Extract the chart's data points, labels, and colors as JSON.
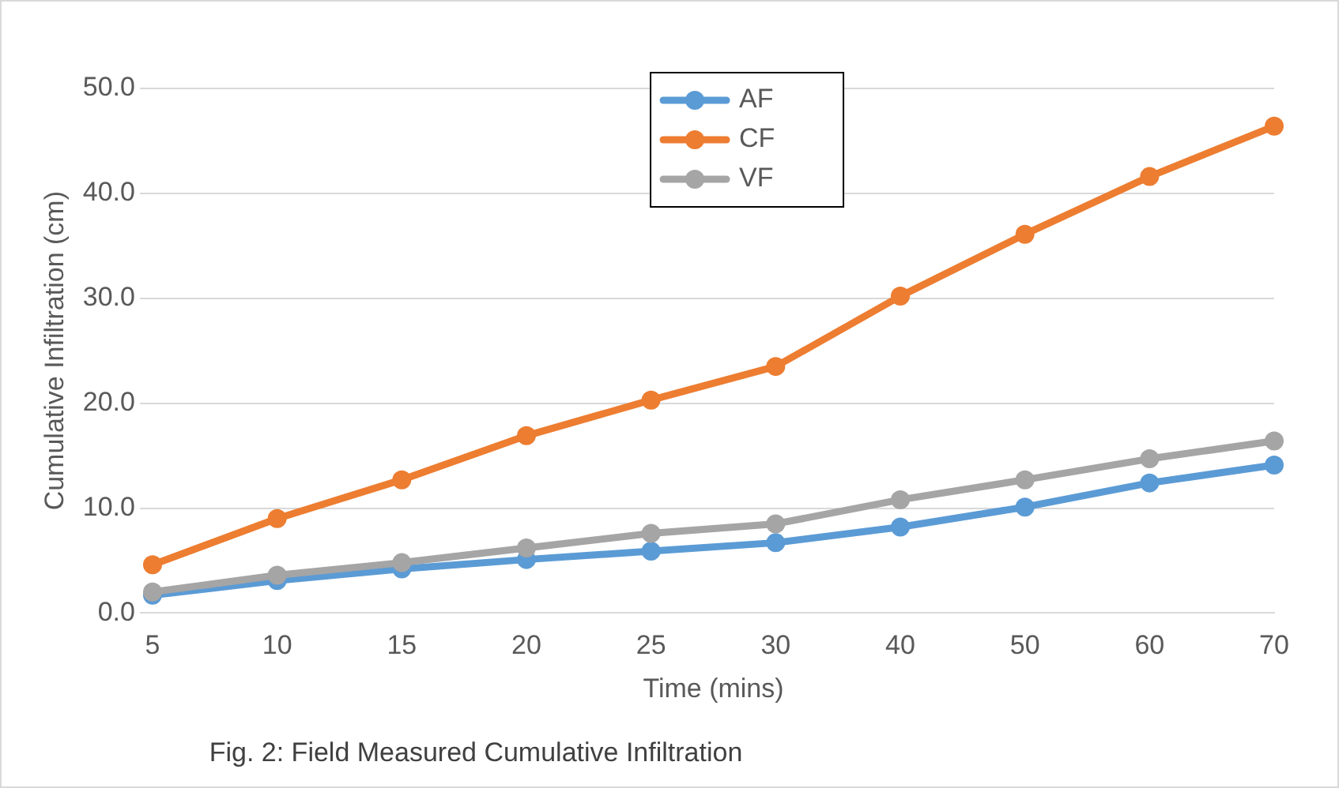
{
  "chart_data": {
    "type": "line",
    "xlabel": "Time (mins)",
    "ylabel": "Cumulative Infiltration (cm)",
    "annotations": [
      "Fig. 2: Field Measured Cumulative Infiltration"
    ],
    "categories": [
      "5",
      "10",
      "15",
      "20",
      "25",
      "30",
      "40",
      "50",
      "60",
      "70"
    ],
    "series": [
      {
        "name": "AF",
        "color": "#5b9bd5",
        "values": [
          1.7,
          3.1,
          4.2,
          5.1,
          5.9,
          6.7,
          8.2,
          10.1,
          12.4,
          14.1
        ]
      },
      {
        "name": "CF",
        "color": "#ed7d31",
        "values": [
          4.6,
          9.0,
          12.7,
          16.9,
          20.3,
          23.5,
          30.2,
          36.1,
          41.6,
          46.4
        ]
      },
      {
        "name": "VF",
        "color": "#a5a5a5",
        "values": [
          2.0,
          3.6,
          4.8,
          6.2,
          7.6,
          8.5,
          10.8,
          12.7,
          14.7,
          16.4
        ]
      }
    ],
    "ylim": [
      0,
      50
    ],
    "yticks": [
      {
        "value": 0,
        "label": "0.0"
      },
      {
        "value": 10,
        "label": "10.0"
      },
      {
        "value": 20,
        "label": "20.0"
      },
      {
        "value": 30,
        "label": "30.0"
      },
      {
        "value": 40,
        "label": "40.0"
      },
      {
        "value": 50,
        "label": "50.0"
      }
    ],
    "grid": "y",
    "legend": "top",
    "marker": "circle",
    "line_style": "solid"
  }
}
